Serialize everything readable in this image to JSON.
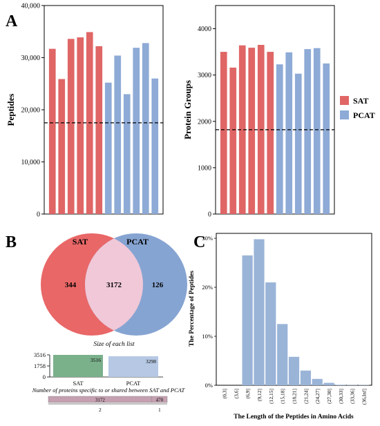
{
  "panels": {
    "A": "A",
    "B": "B",
    "C": "C"
  },
  "colors": {
    "sat": "#e06666",
    "pcat": "#8eaad6",
    "sat_venn": "#e85f5f",
    "pcat_venn": "#7f9fd0",
    "overlap": "#f0c8d8",
    "bar_c": "#9ab4d8",
    "sat_bar_b": "#7ab08a",
    "pcat_bar_b": "#b6c8e4",
    "upset_bar": "#c4a0b0"
  },
  "chart_data": [
    {
      "id": "peptides",
      "type": "bar",
      "ylabel": "Peptides",
      "ylim": [
        0,
        40000
      ],
      "yticks": [
        0,
        10000,
        20000,
        30000,
        40000
      ],
      "ytick_labels": [
        "0",
        "10,000",
        "20,000",
        "30,000",
        "40,000"
      ],
      "reference_line": 17500,
      "series": [
        {
          "name": "SAT",
          "values": [
            31700,
            25900,
            33600,
            33900,
            34900,
            32200
          ]
        },
        {
          "name": "PCAT",
          "values": [
            25200,
            30400,
            23000,
            31900,
            32800,
            26000
          ]
        }
      ]
    },
    {
      "id": "protein_groups",
      "type": "bar",
      "ylabel": "Protein Groups",
      "ylim": [
        0,
        4500
      ],
      "yticks": [
        0,
        1000,
        2000,
        3000,
        4000
      ],
      "ytick_labels": [
        "0",
        "1000",
        "2000",
        "3000",
        "4000"
      ],
      "reference_line": 1820,
      "legend_position": "right",
      "series": [
        {
          "name": "SAT",
          "values": [
            3500,
            3160,
            3640,
            3590,
            3650,
            3500
          ]
        },
        {
          "name": "PCAT",
          "values": [
            3230,
            3490,
            3030,
            3560,
            3580,
            3250
          ]
        }
      ]
    },
    {
      "id": "venn",
      "type": "venn",
      "sets": [
        "SAT",
        "PCAT"
      ],
      "only_sat": 344,
      "shared": 3172,
      "only_pcat": 126
    },
    {
      "id": "list_size",
      "type": "bar",
      "title": "Size of each list",
      "categories": [
        "SAT",
        "PCAT"
      ],
      "values": [
        3516,
        3298
      ],
      "yticks": [
        0,
        1758,
        3516
      ],
      "ytick_labels": [
        "0",
        "1758",
        "3516"
      ],
      "ylim": [
        0,
        3516
      ]
    },
    {
      "id": "specific_shared",
      "type": "bar",
      "title": "Number of proteins specific to or shared between SAT and PCAT",
      "categories": [
        "2",
        "1"
      ],
      "values": [
        3172,
        470
      ]
    },
    {
      "id": "peptide_length",
      "type": "bar",
      "xlabel": "The Length of the Peptides in Amino Acids",
      "ylabel": "The Percentage of Peptides",
      "ylim": [
        0,
        31
      ],
      "yticks": [
        0,
        10,
        20,
        30
      ],
      "ytick_labels": [
        "0%",
        "10%",
        "20%",
        "30%"
      ],
      "categories": [
        "(0,3]",
        "(3,6]",
        "(6,9]",
        "(9,12]",
        "(12,15]",
        "(15,18]",
        "(18,21]",
        "(21,24]",
        "(24,27]",
        "(27,30]",
        "(30,33]",
        "(33,36]",
        "(36,Inf]"
      ],
      "values": [
        0,
        0,
        26.5,
        29.8,
        21.0,
        12.5,
        5.8,
        3.0,
        1.3,
        0.5,
        0.1,
        0.05,
        0.05
      ]
    }
  ]
}
